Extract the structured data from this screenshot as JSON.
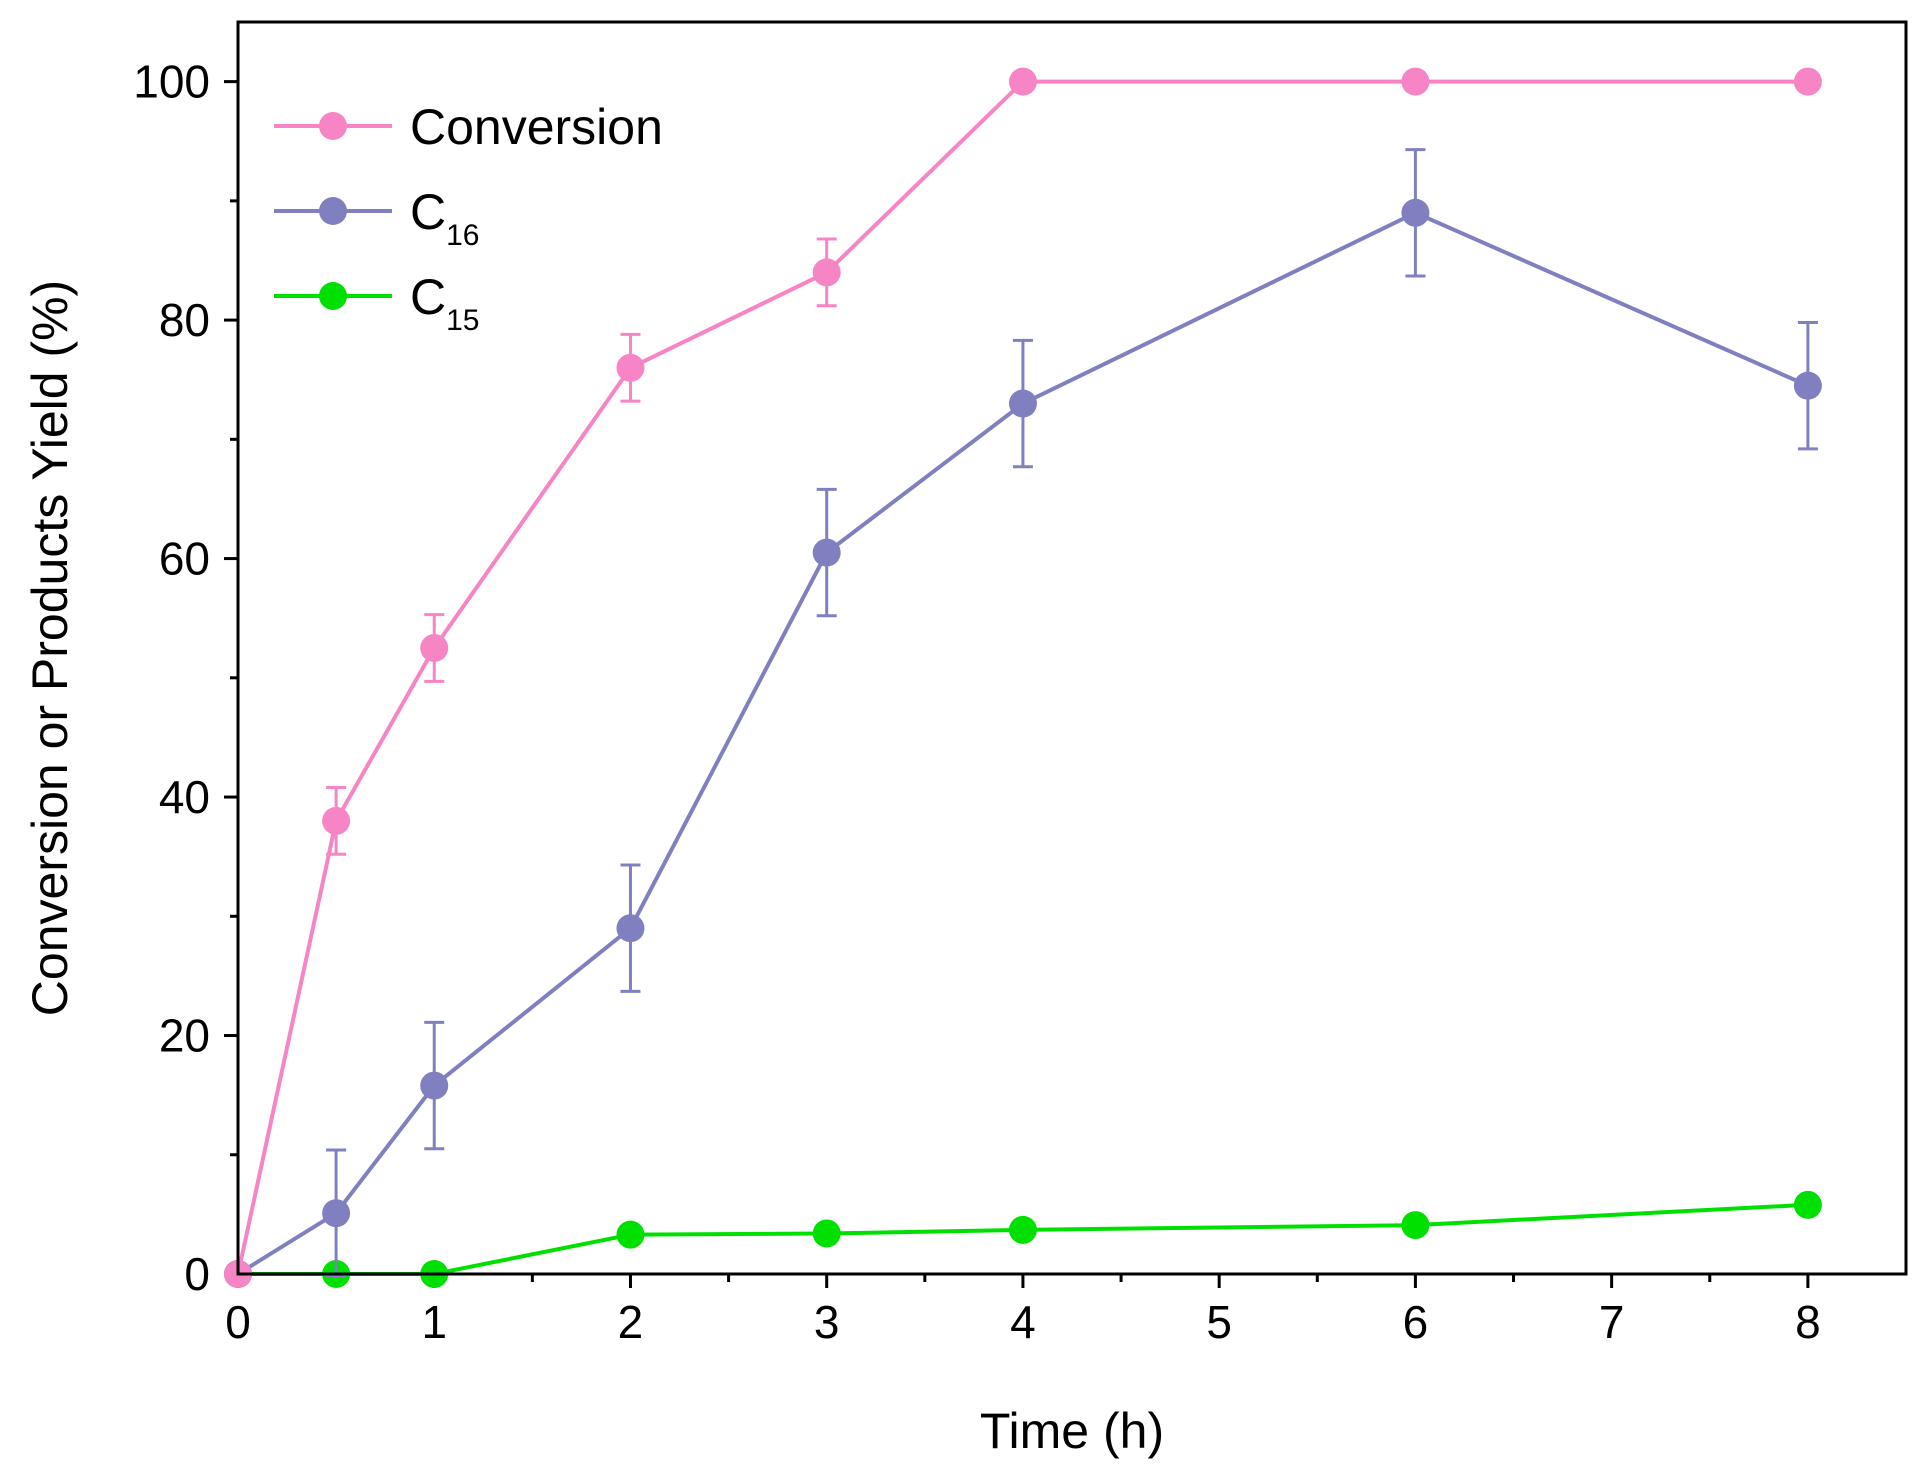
{
  "chart_data": {
    "type": "line",
    "title": "",
    "xlabel": "Time (h)",
    "ylabel": "Conversion or Products Yield (%)",
    "xlim": [
      0,
      8.5
    ],
    "ylim": [
      0,
      105
    ],
    "xticks": [
      0,
      1,
      2,
      3,
      4,
      5,
      6,
      7,
      8
    ],
    "yticks": [
      0,
      20,
      40,
      60,
      80,
      100
    ],
    "legend_position": "top-left",
    "series": [
      {
        "name": "Conversion",
        "name_main": "Conversion",
        "name_sub": "",
        "color": "#f784c4",
        "x": [
          0,
          0.5,
          1,
          2,
          3,
          4,
          6,
          8
        ],
        "y": [
          0,
          38,
          52.5,
          76,
          84,
          100,
          100,
          100
        ],
        "err": [
          0,
          2.8,
          2.8,
          2.8,
          2.8,
          0,
          0,
          0
        ]
      },
      {
        "name": "C16",
        "name_main": "C",
        "name_sub": "16",
        "color": "#8080c0",
        "x": [
          0,
          0.5,
          1,
          2,
          3,
          4,
          6,
          8
        ],
        "y": [
          0,
          5.1,
          15.8,
          29,
          60.5,
          73,
          89,
          74.5
        ],
        "err": [
          0,
          5.3,
          5.3,
          5.3,
          5.3,
          5.3,
          5.3,
          5.3
        ]
      },
      {
        "name": "C15",
        "name_main": "C",
        "name_sub": "15",
        "color": "#00e000",
        "x": [
          0,
          0.5,
          1,
          2,
          3,
          4,
          6,
          8
        ],
        "y": [
          0,
          0,
          0,
          3.3,
          3.4,
          3.7,
          4.1,
          5.8
        ],
        "err": [
          0,
          0,
          0,
          0,
          0,
          0,
          0,
          0
        ]
      }
    ]
  }
}
